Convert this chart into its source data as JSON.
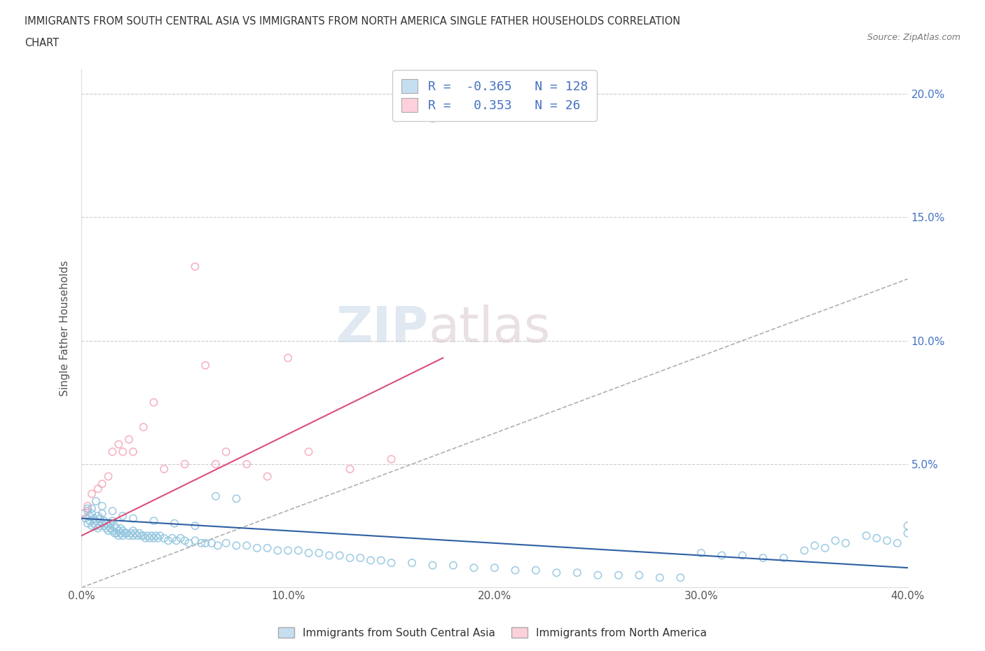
{
  "title_line1": "IMMIGRANTS FROM SOUTH CENTRAL ASIA VS IMMIGRANTS FROM NORTH AMERICA SINGLE FATHER HOUSEHOLDS CORRELATION",
  "title_line2": "CHART",
  "source_text": "Source: ZipAtlas.com",
  "ylabel": "Single Father Households",
  "xlim": [
    0.0,
    0.4
  ],
  "ylim": [
    0.0,
    0.21
  ],
  "x_ticks": [
    0.0,
    0.1,
    0.2,
    0.3,
    0.4
  ],
  "x_tick_labels": [
    "0.0%",
    "10.0%",
    "20.0%",
    "30.0%",
    "40.0%"
  ],
  "y_ticks": [
    0.0,
    0.05,
    0.1,
    0.15,
    0.2
  ],
  "y_tick_labels": [
    "",
    "5.0%",
    "10.0%",
    "15.0%",
    "20.0%"
  ],
  "blue_dot_color": "#92c5de",
  "pink_dot_color": "#f4a7b9",
  "blue_fill": "#c5dff0",
  "pink_fill": "#fdd0dc",
  "trend_blue": "#2e5fa3",
  "trend_pink": "#d94f7a",
  "trend_gray": "#b0b0b0",
  "R_blue": -0.365,
  "N_blue": 128,
  "R_pink": 0.353,
  "N_pink": 26,
  "legend_label_blue": "Immigrants from South Central Asia",
  "legend_label_pink": "Immigrants from North America",
  "watermark_zip": "ZIP",
  "watermark_atlas": "atlas",
  "blue_trend_x0": 0.0,
  "blue_trend_y0": 0.028,
  "blue_trend_x1": 0.4,
  "blue_trend_y1": 0.008,
  "pink_trend_x0": 0.0,
  "pink_trend_y0": 0.021,
  "pink_trend_x1": 0.175,
  "pink_trend_y1": 0.093,
  "gray_trend_x0": 0.0,
  "gray_trend_y0": 0.0,
  "gray_trend_x1": 0.4,
  "gray_trend_y1": 0.125,
  "blue_x": [
    0.001,
    0.002,
    0.003,
    0.003,
    0.004,
    0.004,
    0.005,
    0.005,
    0.006,
    0.006,
    0.007,
    0.007,
    0.008,
    0.008,
    0.009,
    0.009,
    0.01,
    0.01,
    0.011,
    0.011,
    0.012,
    0.012,
    0.013,
    0.013,
    0.014,
    0.014,
    0.015,
    0.015,
    0.016,
    0.016,
    0.017,
    0.017,
    0.018,
    0.018,
    0.019,
    0.019,
    0.02,
    0.02,
    0.021,
    0.022,
    0.023,
    0.024,
    0.025,
    0.025,
    0.026,
    0.027,
    0.028,
    0.029,
    0.03,
    0.031,
    0.032,
    0.033,
    0.034,
    0.035,
    0.036,
    0.037,
    0.038,
    0.04,
    0.042,
    0.044,
    0.046,
    0.048,
    0.05,
    0.052,
    0.055,
    0.058,
    0.06,
    0.063,
    0.066,
    0.07,
    0.075,
    0.08,
    0.085,
    0.09,
    0.095,
    0.1,
    0.105,
    0.11,
    0.115,
    0.12,
    0.125,
    0.13,
    0.135,
    0.14,
    0.145,
    0.15,
    0.16,
    0.17,
    0.18,
    0.19,
    0.2,
    0.21,
    0.22,
    0.23,
    0.24,
    0.25,
    0.26,
    0.27,
    0.28,
    0.29,
    0.3,
    0.31,
    0.32,
    0.33,
    0.34,
    0.35,
    0.355,
    0.36,
    0.365,
    0.37,
    0.38,
    0.385,
    0.39,
    0.395,
    0.4,
    0.4,
    0.003,
    0.005,
    0.007,
    0.01,
    0.015,
    0.02,
    0.025,
    0.035,
    0.045,
    0.055,
    0.065,
    0.075
  ],
  "blue_y": [
    0.03,
    0.028,
    0.031,
    0.026,
    0.029,
    0.027,
    0.032,
    0.025,
    0.028,
    0.026,
    0.027,
    0.025,
    0.029,
    0.024,
    0.028,
    0.025,
    0.03,
    0.026,
    0.027,
    0.025,
    0.026,
    0.024,
    0.025,
    0.023,
    0.026,
    0.024,
    0.027,
    0.023,
    0.025,
    0.022,
    0.024,
    0.022,
    0.023,
    0.021,
    0.024,
    0.022,
    0.023,
    0.021,
    0.022,
    0.022,
    0.021,
    0.022,
    0.023,
    0.021,
    0.022,
    0.021,
    0.022,
    0.021,
    0.021,
    0.02,
    0.021,
    0.02,
    0.021,
    0.02,
    0.021,
    0.02,
    0.021,
    0.02,
    0.019,
    0.02,
    0.019,
    0.02,
    0.019,
    0.018,
    0.019,
    0.018,
    0.018,
    0.018,
    0.017,
    0.018,
    0.017,
    0.017,
    0.016,
    0.016,
    0.015,
    0.015,
    0.015,
    0.014,
    0.014,
    0.013,
    0.013,
    0.012,
    0.012,
    0.011,
    0.011,
    0.01,
    0.01,
    0.009,
    0.009,
    0.008,
    0.008,
    0.007,
    0.007,
    0.006,
    0.006,
    0.005,
    0.005,
    0.005,
    0.004,
    0.004,
    0.014,
    0.013,
    0.013,
    0.012,
    0.012,
    0.015,
    0.017,
    0.016,
    0.019,
    0.018,
    0.021,
    0.02,
    0.019,
    0.018,
    0.025,
    0.022,
    0.032,
    0.03,
    0.035,
    0.033,
    0.031,
    0.029,
    0.028,
    0.027,
    0.026,
    0.025,
    0.037,
    0.036
  ],
  "pink_x": [
    0.001,
    0.003,
    0.005,
    0.008,
    0.01,
    0.013,
    0.015,
    0.018,
    0.02,
    0.023,
    0.025,
    0.03,
    0.035,
    0.04,
    0.05,
    0.055,
    0.06,
    0.065,
    0.07,
    0.08,
    0.09,
    0.1,
    0.11,
    0.13,
    0.15,
    0.17
  ],
  "pink_y": [
    0.03,
    0.033,
    0.038,
    0.04,
    0.042,
    0.045,
    0.055,
    0.058,
    0.055,
    0.06,
    0.055,
    0.065,
    0.075,
    0.048,
    0.05,
    0.13,
    0.09,
    0.05,
    0.055,
    0.05,
    0.045,
    0.093,
    0.055,
    0.048,
    0.052,
    0.19
  ]
}
